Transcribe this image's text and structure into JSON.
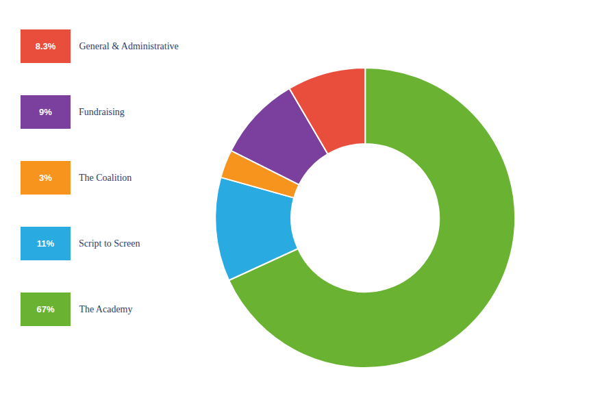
{
  "chart_data": {
    "type": "pie",
    "categories": [
      "The Academy",
      "Script to Screen",
      "The Coalition",
      "Fundraising",
      "General & Administrative"
    ],
    "values": [
      67.0,
      11.0,
      3.0,
      9.0,
      8.3
    ],
    "value_labels": [
      "67%",
      "11%",
      "3%",
      "9%",
      "8.3%"
    ],
    "colors": [
      "#6ab332",
      "#29abe2",
      "#f7941d",
      "#7b3f9e",
      "#e94e3c"
    ],
    "legend": "left"
  }
}
